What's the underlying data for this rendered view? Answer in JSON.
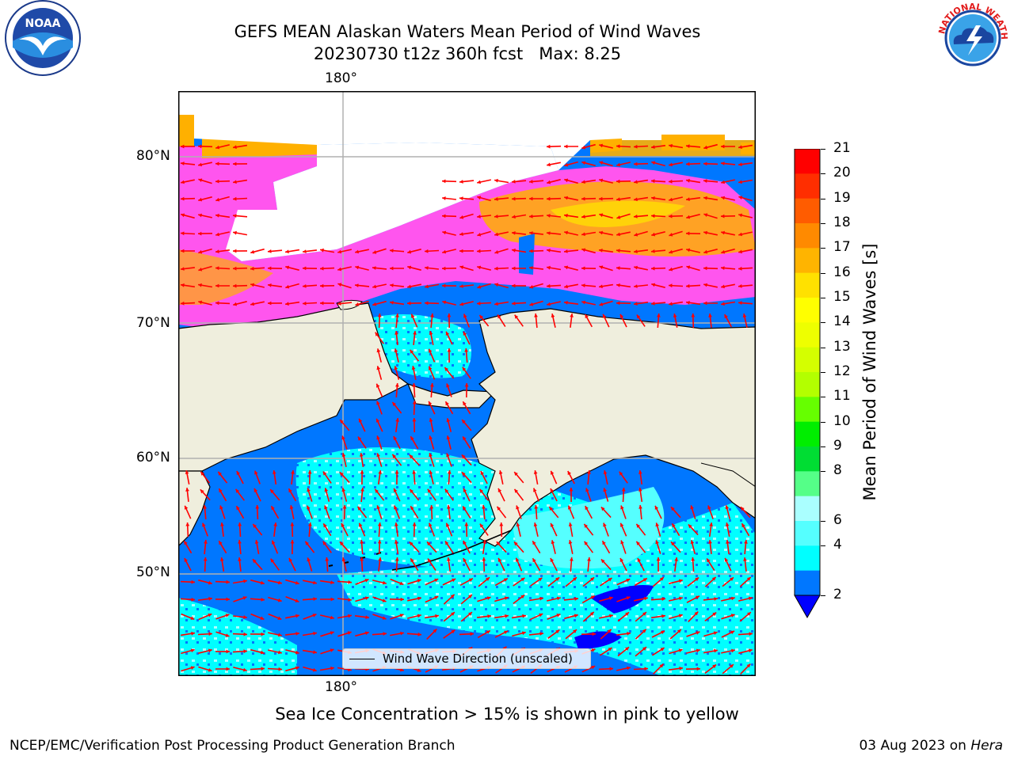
{
  "title_line1": "GEFS MEAN Alaskan Waters Mean Period of Wind Waves",
  "title_line2": "20230730 t12z 360h fcst   Max: 8.25",
  "lon_label_top": "180°",
  "lon_label_bottom": "180°",
  "lat_labels": [
    "80°N",
    "70°N",
    "60°N",
    "50°N"
  ],
  "legend_text": "Wind Wave Direction (unscaled)",
  "colorbar": {
    "label": "Mean Period of Wind Waves [s]",
    "ticks": [
      "21",
      "20",
      "19",
      "18",
      "17",
      "16",
      "15",
      "14",
      "13",
      "12",
      "11",
      "10",
      "9",
      "8",
      "6",
      "4",
      "2"
    ],
    "colors": [
      "#ff0000",
      "#ff2e00",
      "#ff5c00",
      "#ff8a00",
      "#ffb400",
      "#ffe100",
      "#ffff00",
      "#eeff00",
      "#d4ff00",
      "#b3ff00",
      "#66ff00",
      "#00ee00",
      "#00dd33",
      "#55ff88",
      "#aaffff",
      "#55ffff",
      "#00ffff",
      "#0077ff"
    ],
    "under_color": "#0000ff"
  },
  "caption": "Sea Ice Concentration > 15% is shown in pink to yellow",
  "footer_left": "NCEP/EMC/Verification Post Processing Product Generation Branch",
  "footer_right_date": "03 Aug 2023 on ",
  "footer_right_host": "Hera",
  "logo_left": "NOAA",
  "logo_right": "NATIONAL WEATHER SERVICE",
  "colors": {
    "land": "#efeedd",
    "ocean_deep": "#0077ff",
    "ocean_mid": "#00ffff",
    "ocean_light": "#aaffff",
    "ice_pink": "#ff55ee",
    "ice_orange": "#ffb000",
    "ice_yellow": "#ffe100",
    "arrow": "#ff0000"
  }
}
